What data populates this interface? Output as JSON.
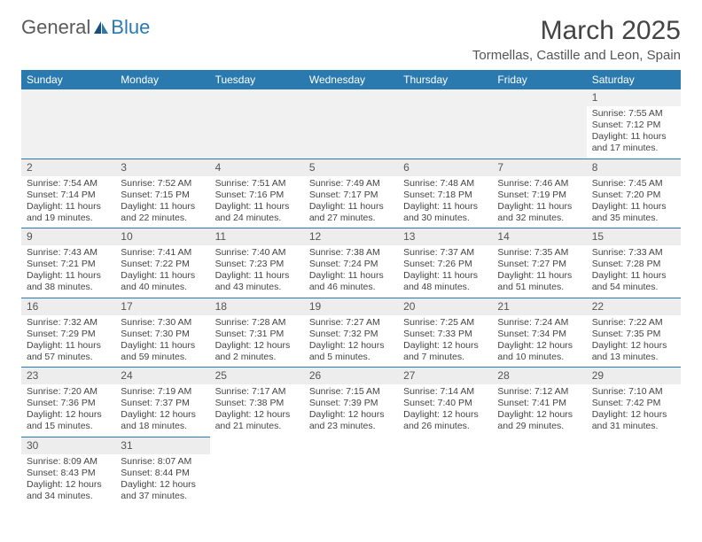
{
  "logo": {
    "text1": "General",
    "text2": "Blue"
  },
  "title": "March 2025",
  "location": "Tormellas, Castille and Leon, Spain",
  "days_of_week": [
    "Sunday",
    "Monday",
    "Tuesday",
    "Wednesday",
    "Thursday",
    "Friday",
    "Saturday"
  ],
  "colors": {
    "header_bg": "#2a7ab0",
    "header_text": "#ffffff",
    "rule": "#2a7ab0"
  },
  "weeks": [
    [
      null,
      null,
      null,
      null,
      null,
      null,
      {
        "n": "1",
        "sr": "Sunrise: 7:55 AM",
        "ss": "Sunset: 7:12 PM",
        "dl": "Daylight: 11 hours and 17 minutes."
      }
    ],
    [
      {
        "n": "2",
        "sr": "Sunrise: 7:54 AM",
        "ss": "Sunset: 7:14 PM",
        "dl": "Daylight: 11 hours and 19 minutes."
      },
      {
        "n": "3",
        "sr": "Sunrise: 7:52 AM",
        "ss": "Sunset: 7:15 PM",
        "dl": "Daylight: 11 hours and 22 minutes."
      },
      {
        "n": "4",
        "sr": "Sunrise: 7:51 AM",
        "ss": "Sunset: 7:16 PM",
        "dl": "Daylight: 11 hours and 24 minutes."
      },
      {
        "n": "5",
        "sr": "Sunrise: 7:49 AM",
        "ss": "Sunset: 7:17 PM",
        "dl": "Daylight: 11 hours and 27 minutes."
      },
      {
        "n": "6",
        "sr": "Sunrise: 7:48 AM",
        "ss": "Sunset: 7:18 PM",
        "dl": "Daylight: 11 hours and 30 minutes."
      },
      {
        "n": "7",
        "sr": "Sunrise: 7:46 AM",
        "ss": "Sunset: 7:19 PM",
        "dl": "Daylight: 11 hours and 32 minutes."
      },
      {
        "n": "8",
        "sr": "Sunrise: 7:45 AM",
        "ss": "Sunset: 7:20 PM",
        "dl": "Daylight: 11 hours and 35 minutes."
      }
    ],
    [
      {
        "n": "9",
        "sr": "Sunrise: 7:43 AM",
        "ss": "Sunset: 7:21 PM",
        "dl": "Daylight: 11 hours and 38 minutes."
      },
      {
        "n": "10",
        "sr": "Sunrise: 7:41 AM",
        "ss": "Sunset: 7:22 PM",
        "dl": "Daylight: 11 hours and 40 minutes."
      },
      {
        "n": "11",
        "sr": "Sunrise: 7:40 AM",
        "ss": "Sunset: 7:23 PM",
        "dl": "Daylight: 11 hours and 43 minutes."
      },
      {
        "n": "12",
        "sr": "Sunrise: 7:38 AM",
        "ss": "Sunset: 7:24 PM",
        "dl": "Daylight: 11 hours and 46 minutes."
      },
      {
        "n": "13",
        "sr": "Sunrise: 7:37 AM",
        "ss": "Sunset: 7:26 PM",
        "dl": "Daylight: 11 hours and 48 minutes."
      },
      {
        "n": "14",
        "sr": "Sunrise: 7:35 AM",
        "ss": "Sunset: 7:27 PM",
        "dl": "Daylight: 11 hours and 51 minutes."
      },
      {
        "n": "15",
        "sr": "Sunrise: 7:33 AM",
        "ss": "Sunset: 7:28 PM",
        "dl": "Daylight: 11 hours and 54 minutes."
      }
    ],
    [
      {
        "n": "16",
        "sr": "Sunrise: 7:32 AM",
        "ss": "Sunset: 7:29 PM",
        "dl": "Daylight: 11 hours and 57 minutes."
      },
      {
        "n": "17",
        "sr": "Sunrise: 7:30 AM",
        "ss": "Sunset: 7:30 PM",
        "dl": "Daylight: 11 hours and 59 minutes."
      },
      {
        "n": "18",
        "sr": "Sunrise: 7:28 AM",
        "ss": "Sunset: 7:31 PM",
        "dl": "Daylight: 12 hours and 2 minutes."
      },
      {
        "n": "19",
        "sr": "Sunrise: 7:27 AM",
        "ss": "Sunset: 7:32 PM",
        "dl": "Daylight: 12 hours and 5 minutes."
      },
      {
        "n": "20",
        "sr": "Sunrise: 7:25 AM",
        "ss": "Sunset: 7:33 PM",
        "dl": "Daylight: 12 hours and 7 minutes."
      },
      {
        "n": "21",
        "sr": "Sunrise: 7:24 AM",
        "ss": "Sunset: 7:34 PM",
        "dl": "Daylight: 12 hours and 10 minutes."
      },
      {
        "n": "22",
        "sr": "Sunrise: 7:22 AM",
        "ss": "Sunset: 7:35 PM",
        "dl": "Daylight: 12 hours and 13 minutes."
      }
    ],
    [
      {
        "n": "23",
        "sr": "Sunrise: 7:20 AM",
        "ss": "Sunset: 7:36 PM",
        "dl": "Daylight: 12 hours and 15 minutes."
      },
      {
        "n": "24",
        "sr": "Sunrise: 7:19 AM",
        "ss": "Sunset: 7:37 PM",
        "dl": "Daylight: 12 hours and 18 minutes."
      },
      {
        "n": "25",
        "sr": "Sunrise: 7:17 AM",
        "ss": "Sunset: 7:38 PM",
        "dl": "Daylight: 12 hours and 21 minutes."
      },
      {
        "n": "26",
        "sr": "Sunrise: 7:15 AM",
        "ss": "Sunset: 7:39 PM",
        "dl": "Daylight: 12 hours and 23 minutes."
      },
      {
        "n": "27",
        "sr": "Sunrise: 7:14 AM",
        "ss": "Sunset: 7:40 PM",
        "dl": "Daylight: 12 hours and 26 minutes."
      },
      {
        "n": "28",
        "sr": "Sunrise: 7:12 AM",
        "ss": "Sunset: 7:41 PM",
        "dl": "Daylight: 12 hours and 29 minutes."
      },
      {
        "n": "29",
        "sr": "Sunrise: 7:10 AM",
        "ss": "Sunset: 7:42 PM",
        "dl": "Daylight: 12 hours and 31 minutes."
      }
    ],
    [
      {
        "n": "30",
        "sr": "Sunrise: 8:09 AM",
        "ss": "Sunset: 8:43 PM",
        "dl": "Daylight: 12 hours and 34 minutes."
      },
      {
        "n": "31",
        "sr": "Sunrise: 8:07 AM",
        "ss": "Sunset: 8:44 PM",
        "dl": "Daylight: 12 hours and 37 minutes."
      },
      null,
      null,
      null,
      null,
      null
    ]
  ]
}
